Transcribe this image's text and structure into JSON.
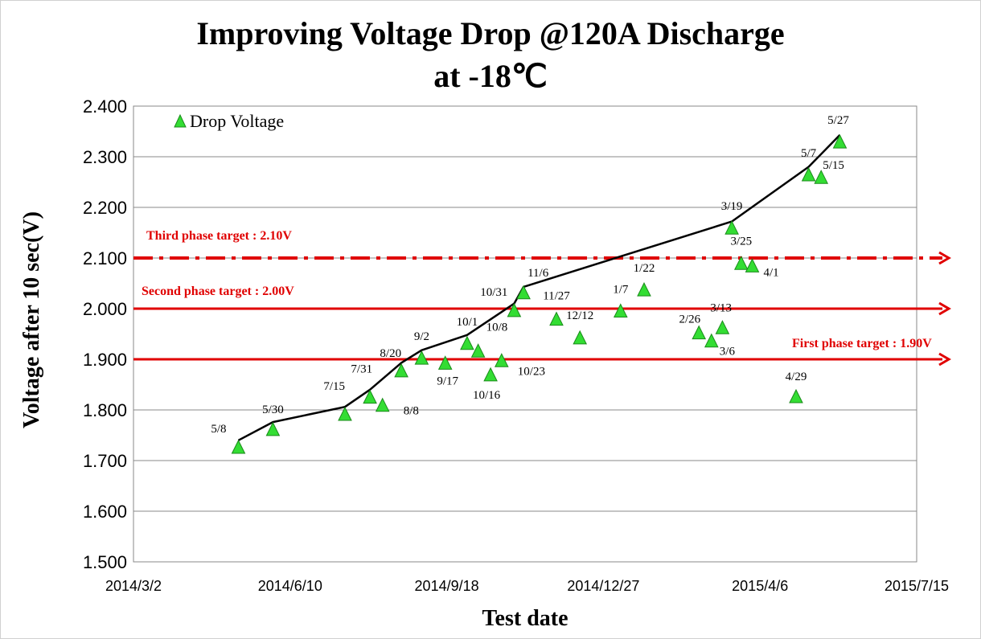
{
  "chart_data": {
    "type": "scatter",
    "title_line1": "Improving Voltage Drop @120A Discharge",
    "title_line2": "at -18℃",
    "xlabel": "Test date",
    "ylabel": "Voltage after 10 sec(V)",
    "x_axis_type": "date",
    "xlim": [
      "2014-03-02",
      "2015-07-15"
    ],
    "x_ticks": [
      "2014/3/2",
      "2014/6/10",
      "2014/9/18",
      "2014/12/27",
      "2015/4/6",
      "2015/7/15"
    ],
    "ylim": [
      1.5,
      2.4
    ],
    "y_ticks": [
      "1.500",
      "1.600",
      "1.700",
      "1.800",
      "1.900",
      "2.000",
      "2.100",
      "2.200",
      "2.300",
      "2.400"
    ],
    "grid": "horizontal",
    "legend": {
      "position": "top-left",
      "entries": [
        "Drop Voltage"
      ]
    },
    "series": [
      {
        "name": "Drop Voltage",
        "marker": "triangle",
        "color": "#33dd33",
        "points": [
          {
            "date": "2014-05-08",
            "y": 1.727,
            "label": "5/8"
          },
          {
            "date": "2014-05-30",
            "y": 1.762,
            "label": "5/30"
          },
          {
            "date": "2014-07-15",
            "y": 1.792,
            "label": "7/15"
          },
          {
            "date": "2014-07-31",
            "y": 1.826,
            "label": "7/31"
          },
          {
            "date": "2014-08-08",
            "y": 1.81,
            "label": "8/8"
          },
          {
            "date": "2014-08-20",
            "y": 1.878,
            "label": "8/20"
          },
          {
            "date": "2014-09-02",
            "y": 1.903,
            "label": "9/2"
          },
          {
            "date": "2014-09-17",
            "y": 1.893,
            "label": "9/17"
          },
          {
            "date": "2014-10-01",
            "y": 1.932,
            "label": "10/1"
          },
          {
            "date": "2014-10-08",
            "y": 1.917,
            "label": "10/8"
          },
          {
            "date": "2014-10-16",
            "y": 1.87,
            "label": "10/16"
          },
          {
            "date": "2014-10-23",
            "y": 1.898,
            "label": "10/23"
          },
          {
            "date": "2014-10-31",
            "y": 1.997,
            "label": "10/31"
          },
          {
            "date": "2014-11-06",
            "y": 2.032,
            "label": "11/6"
          },
          {
            "date": "2014-11-27",
            "y": 1.98,
            "label": "11/27"
          },
          {
            "date": "2014-12-12",
            "y": 1.943,
            "label": "12/12"
          },
          {
            "date": "2015-01-07",
            "y": 1.996,
            "label": "1/7"
          },
          {
            "date": "2015-01-22",
            "y": 2.038,
            "label": "1/22"
          },
          {
            "date": "2015-02-26",
            "y": 1.953,
            "label": "2/26"
          },
          {
            "date": "2015-03-06",
            "y": 1.937,
            "label": "3/6"
          },
          {
            "date": "2015-03-13",
            "y": 1.963,
            "label": "3/13"
          },
          {
            "date": "2015-03-19",
            "y": 2.16,
            "label": "3/19"
          },
          {
            "date": "2015-03-25",
            "y": 2.09,
            "label": "3/25"
          },
          {
            "date": "2015-04-01",
            "y": 2.085,
            "label": "4/1"
          },
          {
            "date": "2015-04-29",
            "y": 1.827,
            "label": "4/29"
          },
          {
            "date": "2015-05-07",
            "y": 2.265,
            "label": "5/7"
          },
          {
            "date": "2015-05-15",
            "y": 2.26,
            "label": "5/15"
          },
          {
            "date": "2015-05-27",
            "y": 2.33,
            "label": "5/27"
          }
        ]
      }
    ],
    "trend_line": [
      {
        "date": "2014-05-08",
        "y": 1.74
      },
      {
        "date": "2014-05-30",
        "y": 1.776
      },
      {
        "date": "2014-07-15",
        "y": 1.806
      },
      {
        "date": "2014-07-31",
        "y": 1.84
      },
      {
        "date": "2014-08-20",
        "y": 1.893
      },
      {
        "date": "2014-09-02",
        "y": 1.918
      },
      {
        "date": "2014-10-01",
        "y": 1.948
      },
      {
        "date": "2014-10-31",
        "y": 2.01
      },
      {
        "date": "2014-11-06",
        "y": 2.043
      },
      {
        "date": "2015-03-19",
        "y": 2.172
      },
      {
        "date": "2015-05-07",
        "y": 2.28
      },
      {
        "date": "2015-05-27",
        "y": 2.343
      }
    ],
    "targets": [
      {
        "label": "First phase target : 1.90V",
        "y": 1.9,
        "style": "solid",
        "color": "#e00000"
      },
      {
        "label": "Second phase target : 2.00V",
        "y": 2.0,
        "style": "solid",
        "color": "#e00000"
      },
      {
        "label": "Third phase target : 2.10V",
        "y": 2.1,
        "style": "dash-dot",
        "color": "#e00000"
      }
    ]
  }
}
